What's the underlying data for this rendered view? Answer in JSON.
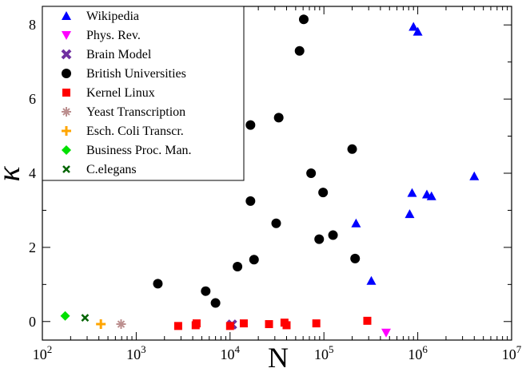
{
  "chart_data": {
    "type": "scatter",
    "xlabel": "N",
    "ylabel": "κ",
    "xscale": "log",
    "xlim": [
      100,
      10000000
    ],
    "ylim": [
      -0.5,
      8.5
    ],
    "x_ticks": [
      {
        "value": 100,
        "base": "10",
        "exp": "2"
      },
      {
        "value": 1000,
        "base": "10",
        "exp": "3"
      },
      {
        "value": 10000,
        "base": "10",
        "exp": "4"
      },
      {
        "value": 100000,
        "base": "10",
        "exp": "5"
      },
      {
        "value": 1000000,
        "base": "10",
        "exp": "6"
      },
      {
        "value": 10000000,
        "base": "10",
        "exp": "7"
      }
    ],
    "y_ticks": [
      {
        "value": 0,
        "label": "0"
      },
      {
        "value": 2,
        "label": "2"
      },
      {
        "value": 4,
        "label": "4"
      },
      {
        "value": 6,
        "label": "6"
      },
      {
        "value": 8,
        "label": "8"
      }
    ],
    "grid": false,
    "legend_position": "top-left",
    "series": [
      {
        "name": "Wikipedia",
        "marker": "triangle-up",
        "color": "#0000ff",
        "points": [
          [
            900000,
            7.95
          ],
          [
            1000000,
            7.82
          ],
          [
            4000000,
            3.92
          ],
          [
            870000,
            3.47
          ],
          [
            1250000,
            3.43
          ],
          [
            1400000,
            3.38
          ],
          [
            820000,
            2.9
          ],
          [
            220000,
            2.65
          ],
          [
            320000,
            1.1
          ]
        ]
      },
      {
        "name": "Phys. Rev.",
        "marker": "triangle-down",
        "color": "#ff00ff",
        "points": [
          [
            460000,
            -0.3
          ]
        ]
      },
      {
        "name": "Brain Model",
        "marker": "x-thick",
        "color": "#7030a0",
        "points": [
          [
            10500,
            -0.08
          ]
        ]
      },
      {
        "name": "British Universities",
        "marker": "circle",
        "color": "#000000",
        "points": [
          [
            61000,
            8.15
          ],
          [
            55000,
            7.3
          ],
          [
            33000,
            5.5
          ],
          [
            16500,
            5.3
          ],
          [
            200000,
            4.65
          ],
          [
            73000,
            4.0
          ],
          [
            98000,
            3.48
          ],
          [
            16500,
            3.25
          ],
          [
            31000,
            2.65
          ],
          [
            125000,
            2.33
          ],
          [
            89000,
            2.22
          ],
          [
            215000,
            1.7
          ],
          [
            18000,
            1.67
          ],
          [
            12000,
            1.48
          ],
          [
            1700,
            1.02
          ],
          [
            5500,
            0.82
          ],
          [
            7000,
            0.5
          ]
        ]
      },
      {
        "name": "Kernel Linux",
        "marker": "square",
        "color": "#ff0000",
        "points": [
          [
            2800,
            -0.12
          ],
          [
            4300,
            -0.1
          ],
          [
            4400,
            -0.05
          ],
          [
            10000,
            -0.12
          ],
          [
            14000,
            -0.05
          ],
          [
            26000,
            -0.07
          ],
          [
            38000,
            -0.03
          ],
          [
            40000,
            -0.1
          ],
          [
            83000,
            -0.05
          ],
          [
            290000,
            0.02
          ]
        ]
      },
      {
        "name": "Yeast Transcription",
        "marker": "asterisk",
        "color": "#bc8f8f",
        "points": [
          [
            690,
            -0.07
          ]
        ]
      },
      {
        "name": "Esch. Coli Transcr.",
        "marker": "plus",
        "color": "#ffa500",
        "points": [
          [
            420,
            -0.07
          ]
        ]
      },
      {
        "name": "Business Proc. Man.",
        "marker": "diamond",
        "color": "#00e000",
        "points": [
          [
            175,
            0.15
          ]
        ]
      },
      {
        "name": "C.elegans",
        "marker": "x",
        "color": "#006400",
        "points": [
          [
            285,
            0.1
          ]
        ]
      }
    ]
  }
}
